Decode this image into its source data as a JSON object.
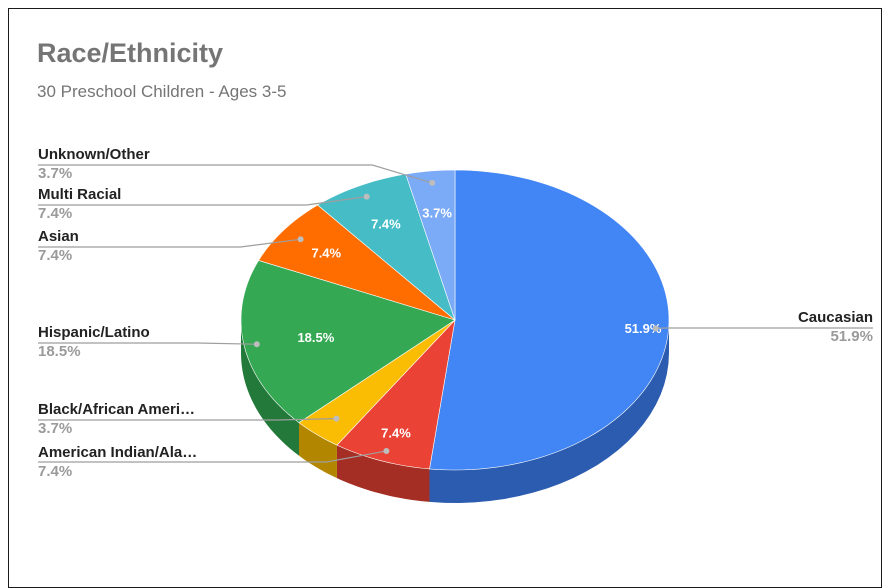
{
  "chart_data": {
    "type": "pie",
    "style": "3d",
    "title": "Race/Ethnicity",
    "subtitle": "30 Preschool Children - Ages 3-5",
    "slices": [
      {
        "name": "Caucasian",
        "display_name": "Caucasian",
        "value": 51.9,
        "label": "51.9%",
        "color": "#4285f4",
        "side_color": "#2c5cb0"
      },
      {
        "name": "American Indian/Alaska Native",
        "display_name": "American Indian/Ala…",
        "value": 7.4,
        "label": "7.4%",
        "color": "#ea4335",
        "side_color": "#a52e24"
      },
      {
        "name": "Black/African American",
        "display_name": "Black/African Ameri…",
        "value": 3.7,
        "label": "3.7%",
        "color": "#fbbc04",
        "side_color": "#b38600"
      },
      {
        "name": "Hispanic/Latino",
        "display_name": "Hispanic/Latino",
        "value": 18.5,
        "label": "18.5%",
        "color": "#34a853",
        "side_color": "#22793a"
      },
      {
        "name": "Asian",
        "display_name": "Asian",
        "value": 7.4,
        "label": "7.4%",
        "color": "#ff6d01",
        "side_color": "#b44d00"
      },
      {
        "name": "Multi Racial",
        "display_name": "Multi Racial",
        "value": 7.4,
        "label": "7.4%",
        "color": "#46bdc6",
        "side_color": "#2f858c"
      },
      {
        "name": "Unknown/Other",
        "display_name": "Unknown/Other",
        "value": 3.7,
        "label": "3.7%",
        "color": "#7baaf7",
        "side_color": "#5679b0"
      }
    ],
    "legend": "callouts"
  }
}
